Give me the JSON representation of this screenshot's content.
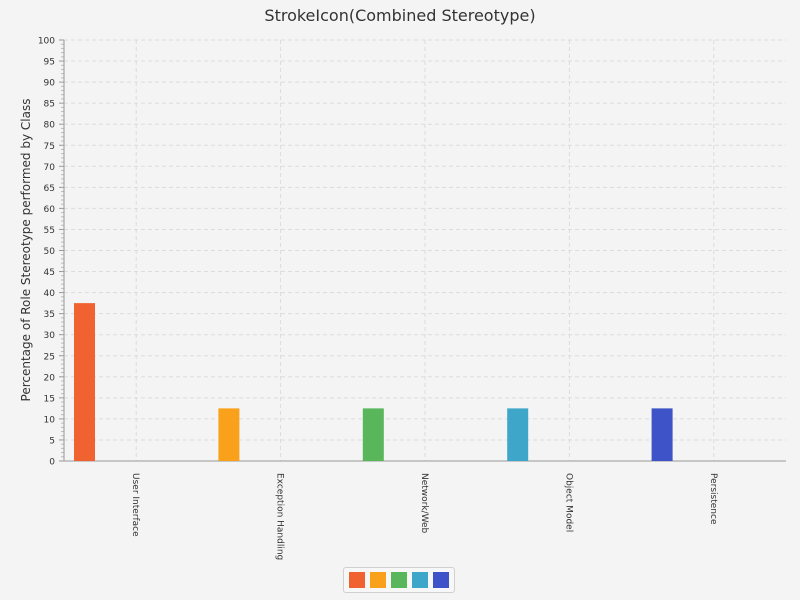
{
  "chart_data": {
    "type": "bar",
    "title": "StrokeIcon(Combined Stereotype)",
    "ylabel": "Percentage of Role Stereotype performed by Class",
    "xlabel": "",
    "categories": [
      "User Interface",
      "Exception Handling",
      "Network/Web",
      "Object Model",
      "Persistence"
    ],
    "values": [
      37.5,
      12.5,
      12.5,
      12.5,
      12.5
    ],
    "colors": [
      "#f0622f",
      "#f9a11b",
      "#59b65a",
      "#3ea6c8",
      "#3f53c8"
    ],
    "ylim": [
      0,
      100
    ],
    "ytick_step": 5,
    "grid": true,
    "legend_position": "bottom-center"
  }
}
